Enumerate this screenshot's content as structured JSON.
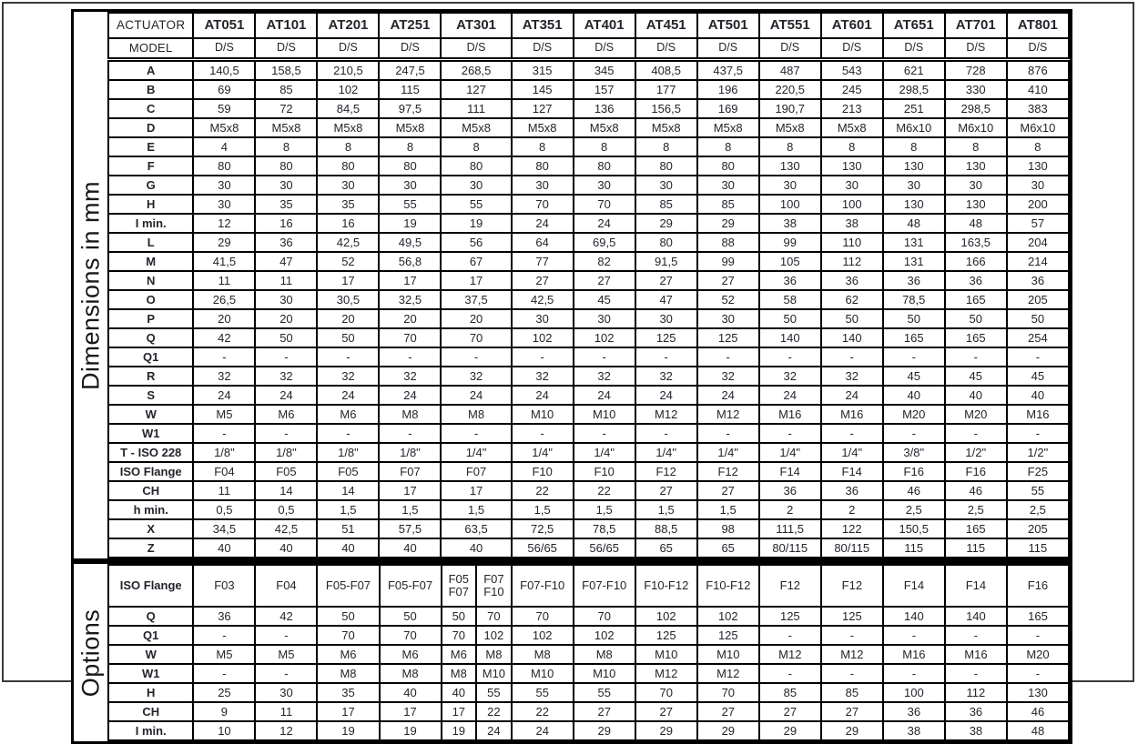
{
  "sections": {
    "dimensions_label": "Dimensions in mm",
    "options_label": "Options"
  },
  "table": {
    "corner": "ACTUATOR",
    "model_row_label": "MODEL",
    "model_value": "D/S",
    "columns": [
      {
        "label": "AT051",
        "span": 1
      },
      {
        "label": "AT101",
        "span": 1
      },
      {
        "label": "AT201",
        "span": 1
      },
      {
        "label": "AT251",
        "span": 1
      },
      {
        "label": "AT301",
        "span": 2
      },
      {
        "label": "AT351",
        "span": 1
      },
      {
        "label": "AT401",
        "span": 1
      },
      {
        "label": "AT451",
        "span": 1
      },
      {
        "label": "AT501",
        "span": 1
      },
      {
        "label": "AT551",
        "span": 1
      },
      {
        "label": "AT601",
        "span": 1
      },
      {
        "label": "AT651",
        "span": 1
      },
      {
        "label": "AT701",
        "span": 1
      },
      {
        "label": "AT801",
        "span": 1
      }
    ],
    "dimensions_rows": [
      {
        "label": "A",
        "values": [
          "140,5",
          "158,5",
          "210,5",
          "247,5",
          "268,5",
          "315",
          "345",
          "408,5",
          "437,5",
          "487",
          "543",
          "621",
          "728",
          "876"
        ]
      },
      {
        "label": "B",
        "values": [
          "69",
          "85",
          "102",
          "115",
          "127",
          "145",
          "157",
          "177",
          "196",
          "220,5",
          "245",
          "298,5",
          "330",
          "410"
        ]
      },
      {
        "label": "C",
        "values": [
          "59",
          "72",
          "84,5",
          "97,5",
          "111",
          "127",
          "136",
          "156,5",
          "169",
          "190,7",
          "213",
          "251",
          "298,5",
          "383"
        ]
      },
      {
        "label": "D",
        "values": [
          "M5x8",
          "M5x8",
          "M5x8",
          "M5x8",
          "M5x8",
          "M5x8",
          "M5x8",
          "M5x8",
          "M5x8",
          "M5x8",
          "M5x8",
          "M6x10",
          "M6x10",
          "M6x10"
        ]
      },
      {
        "label": "E",
        "values": [
          "4",
          "8",
          "8",
          "8",
          "8",
          "8",
          "8",
          "8",
          "8",
          "8",
          "8",
          "8",
          "8",
          "8"
        ]
      },
      {
        "label": "F",
        "values": [
          "80",
          "80",
          "80",
          "80",
          "80",
          "80",
          "80",
          "80",
          "80",
          "130",
          "130",
          "130",
          "130",
          "130"
        ]
      },
      {
        "label": "G",
        "values": [
          "30",
          "30",
          "30",
          "30",
          "30",
          "30",
          "30",
          "30",
          "30",
          "30",
          "30",
          "30",
          "30",
          "30"
        ]
      },
      {
        "label": "H",
        "values": [
          "30",
          "35",
          "35",
          "55",
          "55",
          "70",
          "70",
          "85",
          "85",
          "100",
          "100",
          "130",
          "130",
          "200"
        ]
      },
      {
        "label": "I min.",
        "values": [
          "12",
          "16",
          "16",
          "19",
          "19",
          "24",
          "24",
          "29",
          "29",
          "38",
          "38",
          "48",
          "48",
          "57"
        ]
      },
      {
        "label": "L",
        "values": [
          "29",
          "36",
          "42,5",
          "49,5",
          "56",
          "64",
          "69,5",
          "80",
          "88",
          "99",
          "110",
          "131",
          "163,5",
          "204"
        ]
      },
      {
        "label": "M",
        "values": [
          "41,5",
          "47",
          "52",
          "56,8",
          "67",
          "77",
          "82",
          "91,5",
          "99",
          "105",
          "112",
          "131",
          "166",
          "214"
        ]
      },
      {
        "label": "N",
        "values": [
          "11",
          "11",
          "17",
          "17",
          "17",
          "27",
          "27",
          "27",
          "27",
          "36",
          "36",
          "36",
          "36",
          "36"
        ]
      },
      {
        "label": "O",
        "values": [
          "26,5",
          "30",
          "30,5",
          "32,5",
          "37,5",
          "42,5",
          "45",
          "47",
          "52",
          "58",
          "62",
          "78,5",
          "165",
          "205"
        ]
      },
      {
        "label": "P",
        "values": [
          "20",
          "20",
          "20",
          "20",
          "20",
          "30",
          "30",
          "30",
          "30",
          "50",
          "50",
          "50",
          "50",
          "50"
        ]
      },
      {
        "label": "Q",
        "values": [
          "42",
          "50",
          "50",
          "70",
          "70",
          "102",
          "102",
          "125",
          "125",
          "140",
          "140",
          "165",
          "165",
          "254"
        ]
      },
      {
        "label": "Q1",
        "values": [
          "-",
          "-",
          "-",
          "-",
          "-",
          "-",
          "-",
          "-",
          "-",
          "-",
          "-",
          "-",
          "-",
          "-"
        ]
      },
      {
        "label": "R",
        "values": [
          "32",
          "32",
          "32",
          "32",
          "32",
          "32",
          "32",
          "32",
          "32",
          "32",
          "32",
          "45",
          "45",
          "45"
        ]
      },
      {
        "label": "S",
        "values": [
          "24",
          "24",
          "24",
          "24",
          "24",
          "24",
          "24",
          "24",
          "24",
          "24",
          "24",
          "40",
          "40",
          "40"
        ]
      },
      {
        "label": "W",
        "values": [
          "M5",
          "M6",
          "M6",
          "M8",
          "M8",
          "M10",
          "M10",
          "M12",
          "M12",
          "M16",
          "M16",
          "M20",
          "M20",
          "M16"
        ]
      },
      {
        "label": "W1",
        "values": [
          "-",
          "-",
          "-",
          "-",
          "-",
          "-",
          "-",
          "-",
          "-",
          "-",
          "-",
          "-",
          "-",
          "-"
        ]
      },
      {
        "label": "T - ISO 228",
        "values": [
          "1/8\"",
          "1/8\"",
          "1/8\"",
          "1/8\"",
          "1/4\"",
          "1/4\"",
          "1/4\"",
          "1/4\"",
          "1/4\"",
          "1/4\"",
          "1/4\"",
          "3/8\"",
          "1/2\"",
          "1/2\""
        ]
      },
      {
        "label": "ISO Flange",
        "values": [
          "F04",
          "F05",
          "F05",
          "F07",
          "F07",
          "F10",
          "F10",
          "F12",
          "F12",
          "F14",
          "F14",
          "F16",
          "F16",
          "F25"
        ]
      },
      {
        "label": "CH",
        "values": [
          "11",
          "14",
          "14",
          "17",
          "17",
          "22",
          "22",
          "27",
          "27",
          "36",
          "36",
          "46",
          "46",
          "55"
        ]
      },
      {
        "label": "h min.",
        "values": [
          "0,5",
          "0,5",
          "1,5",
          "1,5",
          "1,5",
          "1,5",
          "1,5",
          "1,5",
          "1,5",
          "2",
          "2",
          "2,5",
          "2,5",
          "2,5"
        ]
      },
      {
        "label": "X",
        "values": [
          "34,5",
          "42,5",
          "51",
          "57,5",
          "63,5",
          "72,5",
          "78,5",
          "88,5",
          "98",
          "111,5",
          "122",
          "150,5",
          "165",
          "205"
        ]
      },
      {
        "label": "Z",
        "values": [
          "40",
          "40",
          "40",
          "40",
          "40",
          "56/65",
          "56/65",
          "65",
          "65",
          "80/115",
          "80/115",
          "115",
          "115",
          "115"
        ]
      }
    ],
    "options_rows": [
      {
        "label": "ISO Flange",
        "values": [
          "F03",
          "F04",
          "F05-F07",
          "F05-F07",
          "F05\nF07",
          "F07\nF10",
          "F07-F10",
          "F07-F10",
          "F10-F12",
          "F10-F12",
          "F12",
          "F12",
          "F14",
          "F14",
          "F16"
        ]
      },
      {
        "label": "Q",
        "values": [
          "36",
          "42",
          "50",
          "50",
          "50",
          "70",
          "70",
          "70",
          "102",
          "102",
          "125",
          "125",
          "140",
          "140",
          "165"
        ]
      },
      {
        "label": "Q1",
        "values": [
          "-",
          "-",
          "70",
          "70",
          "70",
          "102",
          "102",
          "102",
          "125",
          "125",
          "-",
          "-",
          "-",
          "-",
          "-"
        ]
      },
      {
        "label": "W",
        "values": [
          "M5",
          "M5",
          "M6",
          "M6",
          "M6",
          "M8",
          "M8",
          "M8",
          "M10",
          "M10",
          "M12",
          "M12",
          "M16",
          "M16",
          "M20"
        ]
      },
      {
        "label": "W1",
        "values": [
          "-",
          "-",
          "M8",
          "M8",
          "M8",
          "M10",
          "M10",
          "M10",
          "M12",
          "M12",
          "-",
          "-",
          "-",
          "-",
          "-"
        ]
      },
      {
        "label": "H",
        "values": [
          "25",
          "30",
          "35",
          "40",
          "40",
          "55",
          "55",
          "55",
          "70",
          "70",
          "85",
          "85",
          "100",
          "112",
          "130"
        ]
      },
      {
        "label": "CH",
        "values": [
          "9",
          "11",
          "17",
          "17",
          "17",
          "22",
          "22",
          "27",
          "27",
          "27",
          "27",
          "27",
          "36",
          "36",
          "46"
        ]
      },
      {
        "label": "I min.",
        "values": [
          "10",
          "12",
          "19",
          "19",
          "19",
          "24",
          "24",
          "29",
          "29",
          "29",
          "29",
          "29",
          "38",
          "38",
          "48"
        ]
      }
    ]
  }
}
